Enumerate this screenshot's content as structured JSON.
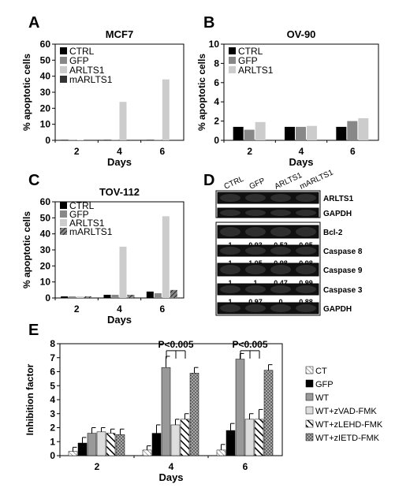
{
  "panels": {
    "a": "A",
    "b": "B",
    "c": "C",
    "d": "D",
    "e": "E"
  },
  "blot": {
    "lanes": [
      "CTRL",
      "GFP",
      "ARLTS1",
      "mARLTS1"
    ],
    "rows": [
      {
        "label": "ARLTS1",
        "values": null
      },
      {
        "label": "GAPDH",
        "values": null
      },
      {
        "label": "Bcl-2",
        "values": [
          "1",
          "0.93",
          "0.52",
          "0.95"
        ]
      },
      {
        "label": "Caspase 8",
        "values": [
          "1",
          "1.05",
          "0.98",
          "0.98"
        ]
      },
      {
        "label": "Caspase 9",
        "values": [
          "1",
          "1",
          "0.47",
          "0.99"
        ]
      },
      {
        "label": "Caspase 3",
        "values": [
          "1",
          "0.97",
          "0",
          "0.88"
        ]
      },
      {
        "label": "GAPDH",
        "values": null
      }
    ]
  },
  "chart_data": [
    {
      "id": "A",
      "type": "bar",
      "title": "MCF7",
      "xlabel": "Days",
      "ylabel": "% apoptotic cells",
      "ylim": [
        0,
        60
      ],
      "yticks": [
        "0",
        "10",
        "20",
        "30",
        "40",
        "50",
        "60"
      ],
      "categories": [
        "2",
        "4",
        "6"
      ],
      "legend_position": "top-left",
      "series": [
        {
          "name": "CTRL",
          "color": "#000000",
          "values": [
            0.3,
            0.3,
            0.3
          ]
        },
        {
          "name": "GFP",
          "color": "#888888",
          "values": [
            0.3,
            0.3,
            0.3
          ]
        },
        {
          "name": "ARLTS1",
          "color": "#cccccc",
          "values": [
            0.3,
            24,
            38
          ]
        },
        {
          "name": "mARLTS1",
          "color": "#333333",
          "values": [
            0.3,
            0.3,
            0.3
          ]
        }
      ]
    },
    {
      "id": "B",
      "type": "bar",
      "title": "OV-90",
      "xlabel": "Days",
      "ylabel": "% apoptotic cells",
      "ylim": [
        0,
        10
      ],
      "yticks": [
        "0",
        "2",
        "4",
        "6",
        "8",
        "10"
      ],
      "categories": [
        "2",
        "4",
        "6"
      ],
      "legend_position": "top-left",
      "series": [
        {
          "name": "CTRL",
          "color": "#000000",
          "values": [
            1.4,
            1.4,
            1.4
          ]
        },
        {
          "name": "GFP",
          "color": "#888888",
          "values": [
            1.1,
            1.4,
            2.0
          ]
        },
        {
          "name": "ARLTS1",
          "color": "#cccccc",
          "values": [
            1.9,
            1.5,
            2.3
          ]
        }
      ]
    },
    {
      "id": "C",
      "type": "bar",
      "title": "TOV-112",
      "xlabel": "Days",
      "ylabel": "% apoptotic cells",
      "ylim": [
        0,
        60
      ],
      "yticks": [
        "0",
        "10",
        "20",
        "30",
        "40",
        "50",
        "60"
      ],
      "categories": [
        "2",
        "4",
        "6"
      ],
      "legend_position": "top-left",
      "series": [
        {
          "name": "CTRL",
          "color": "#000000",
          "values": [
            1,
            2,
            4
          ]
        },
        {
          "name": "GFP",
          "color": "#888888",
          "values": [
            1,
            2,
            3
          ]
        },
        {
          "name": "ARLTS1",
          "color": "#cccccc",
          "values": [
            1,
            32,
            51
          ]
        },
        {
          "name": "mARLTS1",
          "color": "#999999",
          "pattern": "hatch",
          "values": [
            1,
            2,
            5
          ]
        }
      ]
    },
    {
      "id": "E",
      "type": "bar",
      "xlabel": "Days",
      "ylabel": "Inhibition factor",
      "ylim": [
        0,
        8
      ],
      "yticks": [
        "0",
        "1",
        "2",
        "3",
        "4",
        "5",
        "6",
        "7",
        "8"
      ],
      "categories": [
        "2",
        "4",
        "6"
      ],
      "legend_position": "right",
      "annotations": [
        "P<0.005",
        "P<0.005"
      ],
      "series": [
        {
          "name": "CT",
          "color": "#ffffff",
          "pattern": "hatch-light",
          "values": [
            0.3,
            0.4,
            0.4
          ],
          "errors": [
            0.3,
            0.3,
            0.4
          ]
        },
        {
          "name": "GFP",
          "color": "#000000",
          "values": [
            0.9,
            1.6,
            1.8
          ],
          "errors": [
            0.4,
            0.6,
            0.5
          ]
        },
        {
          "name": "WT",
          "color": "#999999",
          "values": [
            1.6,
            6.3,
            6.9
          ],
          "errors": [
            0.4,
            0.8,
            0.4
          ]
        },
        {
          "name": "WT+zVAD-FMK",
          "color": "#dddddd",
          "values": [
            1.7,
            2.2,
            2.6
          ],
          "errors": [
            0.3,
            0.4,
            0.4
          ]
        },
        {
          "name": "WT+zLEHD-FMK",
          "color": "#ffffff",
          "pattern": "hatch-bold",
          "values": [
            1.6,
            2.6,
            2.6
          ],
          "errors": [
            0.3,
            0.4,
            0.7
          ]
        },
        {
          "name": "WT+zIETD-FMK",
          "color": "#bbbbbb",
          "pattern": "cross",
          "values": [
            1.5,
            5.9,
            6.1
          ],
          "errors": [
            0.4,
            0.4,
            0.4
          ]
        }
      ]
    }
  ]
}
